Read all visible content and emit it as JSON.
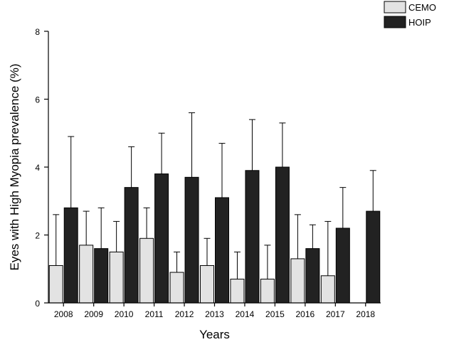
{
  "chart_data": {
    "type": "bar",
    "xlabel": "Years",
    "ylabel": "Eyes with High Myopia prevalence (%)",
    "ylim": [
      0,
      8
    ],
    "yticks": [
      0,
      2,
      4,
      6,
      8
    ],
    "categories": [
      "2008",
      "2009",
      "2010",
      "2011",
      "2012",
      "2013",
      "2014",
      "2015",
      "2016",
      "2017",
      "2018"
    ],
    "series": [
      {
        "name": "CEMO",
        "color": "#e3e3e3",
        "values": [
          1.1,
          1.7,
          1.5,
          1.9,
          0.9,
          1.1,
          0.7,
          0.7,
          1.3,
          0.8,
          null
        ],
        "error_upper": [
          2.6,
          2.7,
          2.4,
          2.8,
          1.5,
          1.9,
          1.5,
          1.7,
          2.6,
          2.4,
          null
        ]
      },
      {
        "name": "HOIP",
        "color": "#222222",
        "values": [
          2.8,
          1.6,
          3.4,
          3.8,
          3.7,
          3.1,
          3.9,
          4.0,
          1.6,
          2.2,
          2.7
        ],
        "error_upper": [
          4.9,
          2.8,
          4.6,
          5.0,
          5.6,
          4.7,
          5.4,
          5.3,
          2.3,
          3.4,
          3.9
        ]
      }
    ],
    "grid": false,
    "legend_position": "top-right"
  }
}
